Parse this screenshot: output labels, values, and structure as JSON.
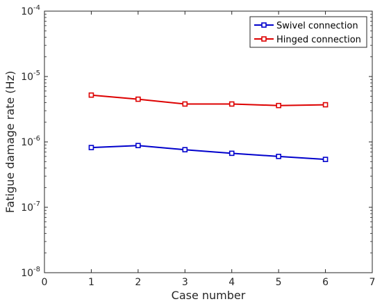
{
  "chart_data": {
    "type": "line",
    "xlabel": "Case number",
    "ylabel": "Fatigue damage rate (Hz)",
    "xlim": [
      0,
      7
    ],
    "xticks": [
      "0",
      "1",
      "2",
      "3",
      "4",
      "5",
      "6",
      "7"
    ],
    "yscale": "log",
    "ylim": [
      1e-08,
      0.0001
    ],
    "yticks": [
      {
        "base": "10",
        "exp": "-8"
      },
      {
        "base": "10",
        "exp": "-7"
      },
      {
        "base": "10",
        "exp": "-6"
      },
      {
        "base": "10",
        "exp": "-5"
      },
      {
        "base": "10",
        "exp": "-4"
      }
    ],
    "grid": false,
    "legend_position": "top-right",
    "x": [
      1,
      2,
      3,
      4,
      5,
      6
    ],
    "series": [
      {
        "name": "Swivel connection",
        "color": "#0000cc",
        "values": [
          8.2e-07,
          8.8e-07,
          7.6e-07,
          6.7e-07,
          6e-07,
          5.4e-07
        ]
      },
      {
        "name": "Hinged connection",
        "color": "#dd0000",
        "values": [
          5.2e-06,
          4.5e-06,
          3.8e-06,
          3.8e-06,
          3.6e-06,
          3.7e-06
        ]
      }
    ]
  }
}
